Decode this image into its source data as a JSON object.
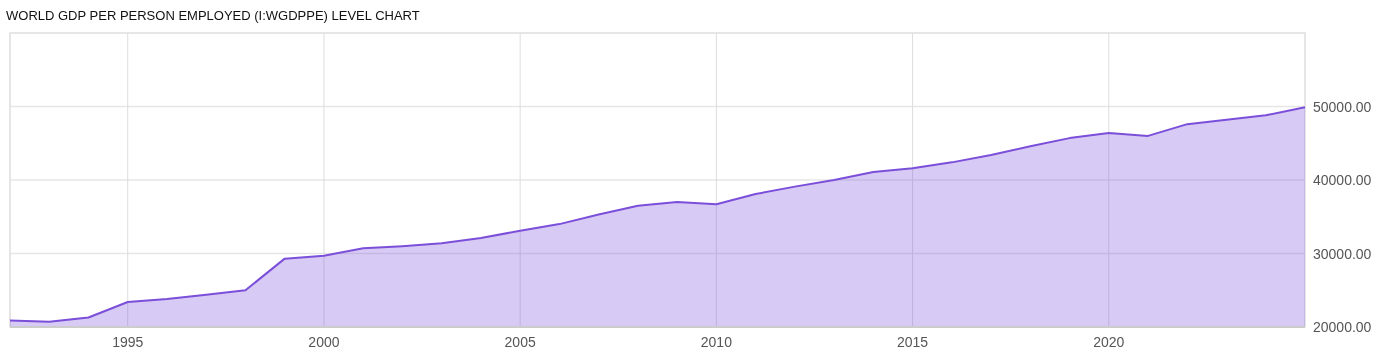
{
  "chart_data": {
    "type": "area",
    "title": "WORLD GDP PER PERSON EMPLOYED (I:WGDPPE) LEVEL CHART",
    "x": [
      1992,
      1993,
      1994,
      1995,
      1996,
      1997,
      1998,
      1999,
      2000,
      2001,
      2002,
      2003,
      2004,
      2005,
      2006,
      2007,
      2008,
      2009,
      2010,
      2011,
      2012,
      2013,
      2014,
      2015,
      2016,
      2017,
      2018,
      2019,
      2020,
      2021,
      2022,
      2023,
      2024,
      2025
    ],
    "series": [
      {
        "color": "#7b4fd9",
        "values": [
          20900,
          20700,
          21300,
          23400,
          23800,
          24400,
          25000,
          29300,
          29700,
          30700,
          31000,
          31400,
          32100,
          33100,
          34000,
          35300,
          36500,
          37000,
          36700,
          38100,
          39100,
          40000,
          41100,
          41600,
          42400,
          43400,
          44600,
          45700,
          46400,
          46000,
          47600,
          48200,
          48800,
          49900
        ]
      }
    ],
    "xlim": [
      1992,
      2025
    ],
    "xticks": [
      1995,
      2000,
      2005,
      2010,
      2015,
      2020
    ],
    "ylim": [
      20000,
      60000
    ],
    "yticks": [
      {
        "value": 20000,
        "label": "20000.00"
      },
      {
        "value": 30000,
        "label": "30000.00"
      },
      {
        "value": 40000,
        "label": "40000.00"
      },
      {
        "value": 50000,
        "label": "50000.00"
      },
      {
        "value": 60000,
        "label": null
      }
    ],
    "grid": true
  }
}
